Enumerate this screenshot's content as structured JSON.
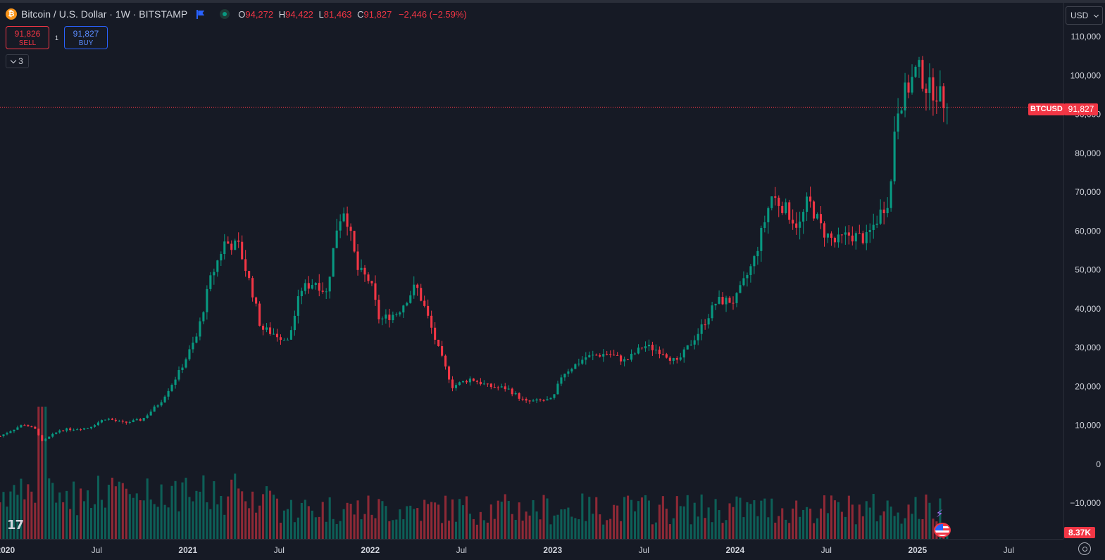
{
  "header": {
    "title": "Bitcoin / U.S. Dollar · 1W · BITSTAMP",
    "coin_glyph": "₿",
    "ohlc": {
      "o_key": "O",
      "o_val": "94,272",
      "h_key": "H",
      "h_val": "94,422",
      "l_key": "L",
      "l_val": "81,463",
      "c_key": "C",
      "c_val": "91,827",
      "change": "−2,446 (−2.59%)"
    },
    "icons": [
      "bitcoin-logo-icon",
      "flag-icon",
      "market-open-dot-icon"
    ]
  },
  "trade": {
    "sell_price": "91,826",
    "sell_label": "SELL",
    "buy_price": "91,827",
    "buy_label": "BUY",
    "spread": "1"
  },
  "indicators": {
    "count": "3"
  },
  "price_axis": {
    "currency": "USD",
    "ticks": [
      "110,000",
      "100,000",
      "90,000",
      "80,000",
      "70,000",
      "60,000",
      "50,000",
      "40,000",
      "30,000",
      "20,000",
      "10,000",
      "0",
      "−10,000"
    ],
    "symbol_label": "BTCUSD",
    "last_price_label": "91,827",
    "volume_label": "8.37K"
  },
  "time_axis": {
    "ticks": [
      "2020",
      "Jul",
      "2021",
      "Jul",
      "2022",
      "Jul",
      "2023",
      "Jul",
      "2024",
      "Jul",
      "2025",
      "Jul"
    ]
  },
  "colors": {
    "up": "#089981",
    "down": "#f23645",
    "background": "#161a25",
    "text": "#d1d4dc"
  },
  "chart_data": {
    "type": "candlestick",
    "interval": "1W",
    "y_unit": "USD",
    "ylim": [
      -10000,
      110000
    ],
    "x_unit": "year",
    "xlim": [
      2019.97,
      2025.8
    ],
    "last_price": 91827,
    "series_close": [
      [
        2019.97,
        7200
      ],
      [
        2020.1,
        10300
      ],
      [
        2020.17,
        8800
      ],
      [
        2020.2,
        5800
      ],
      [
        2020.3,
        8800
      ],
      [
        2020.45,
        9300
      ],
      [
        2020.55,
        11800
      ],
      [
        2020.65,
        10600
      ],
      [
        2020.75,
        11500
      ],
      [
        2020.85,
        16000
      ],
      [
        2020.95,
        23500
      ],
      [
        2021.05,
        33000
      ],
      [
        2021.12,
        47000
      ],
      [
        2021.2,
        57000
      ],
      [
        2021.28,
        56000
      ],
      [
        2021.35,
        45000
      ],
      [
        2021.4,
        35000
      ],
      [
        2021.5,
        33000
      ],
      [
        2021.55,
        31500
      ],
      [
        2021.62,
        45000
      ],
      [
        2021.7,
        47000
      ],
      [
        2021.76,
        44000
      ],
      [
        2021.82,
        62000
      ],
      [
        2021.86,
        66000
      ],
      [
        2021.93,
        50000
      ],
      [
        2022.0,
        47000
      ],
      [
        2022.05,
        37000
      ],
      [
        2022.15,
        39000
      ],
      [
        2022.25,
        46000
      ],
      [
        2022.3,
        40000
      ],
      [
        2022.37,
        30000
      ],
      [
        2022.45,
        20000
      ],
      [
        2022.55,
        22000
      ],
      [
        2022.65,
        20000
      ],
      [
        2022.75,
        19500
      ],
      [
        2022.85,
        16000
      ],
      [
        2023.0,
        16600
      ],
      [
        2023.05,
        23000
      ],
      [
        2023.18,
        27500
      ],
      [
        2023.3,
        28500
      ],
      [
        2023.4,
        26500
      ],
      [
        2023.5,
        30500
      ],
      [
        2023.6,
        29000
      ],
      [
        2023.68,
        26000
      ],
      [
        2023.8,
        34000
      ],
      [
        2023.9,
        42000
      ],
      [
        2024.0,
        42000
      ],
      [
        2024.1,
        52000
      ],
      [
        2024.2,
        69000
      ],
      [
        2024.27,
        66000
      ],
      [
        2024.35,
        61000
      ],
      [
        2024.4,
        68000
      ],
      [
        2024.48,
        60000
      ],
      [
        2024.55,
        57000
      ],
      [
        2024.62,
        59000
      ],
      [
        2024.72,
        58000
      ],
      [
        2024.8,
        65000
      ],
      [
        2024.85,
        69000
      ],
      [
        2024.88,
        91000
      ],
      [
        2024.95,
        97000
      ],
      [
        2025.0,
        102000
      ],
      [
        2025.05,
        97000
      ],
      [
        2025.1,
        96000
      ],
      [
        2025.17,
        91827
      ]
    ],
    "title": "Bitcoin / U.S. Dollar · 1W · BITSTAMP",
    "grid": false
  }
}
